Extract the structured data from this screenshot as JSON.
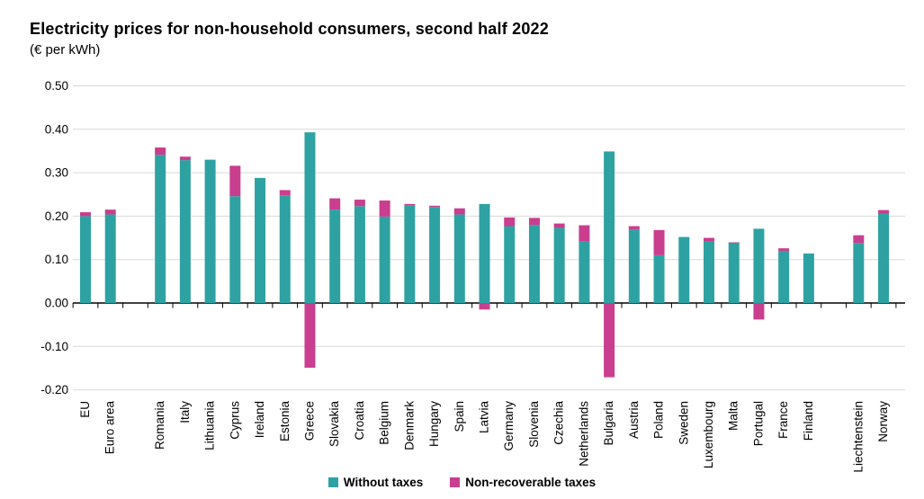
{
  "title": "Electricity prices for non-household consumers, second half 2022",
  "subtitle": "(€ per kWh)",
  "legend": [
    {
      "label": "Without taxes",
      "color": "#2EA2A2"
    },
    {
      "label": "Non-recoverable taxes",
      "color": "#C93E8F"
    }
  ],
  "colors": {
    "gridline": "#d9d9d9",
    "axis": "#000000",
    "text": "#000000"
  },
  "chart_data": {
    "type": "bar",
    "stacked": true,
    "title": "Electricity prices for non-household consumers, second half 2022",
    "ylabel": "€ per kWh",
    "ylim": [
      -0.2,
      0.5
    ],
    "yticks": [
      0.5,
      0.4,
      0.3,
      0.2,
      0.1,
      0.0,
      -0.1,
      -0.2
    ],
    "grid": true,
    "legend_position": "bottom",
    "categories": [
      "EU",
      "Euro area",
      "Romania",
      "Italy",
      "Lithuania",
      "Cyprus",
      "Ireland",
      "Estonia",
      "Greece",
      "Slovakia",
      "Croatia",
      "Belgium",
      "Denmark",
      "Hungary",
      "Spain",
      "Latvia",
      "Germany",
      "Slovenia",
      "Czechia",
      "Netherlands",
      "Bulgaria",
      "Austria",
      "Poland",
      "Sweden",
      "Luxembourg",
      "Malta",
      "Portugal",
      "France",
      "Finland",
      "Liechtenstein",
      "Norway"
    ],
    "series": [
      {
        "name": "Without taxes",
        "color": "#2EA2A2",
        "values": [
          0.2,
          0.204,
          0.341,
          0.329,
          0.33,
          0.246,
          0.288,
          0.248,
          0.393,
          0.215,
          0.223,
          0.199,
          0.225,
          0.221,
          0.204,
          0.228,
          0.177,
          0.18,
          0.173,
          0.142,
          0.349,
          0.169,
          0.11,
          0.152,
          0.142,
          0.139,
          0.171,
          0.12,
          0.114,
          0.138,
          0.206
        ]
      },
      {
        "name": "Non-recoverable taxes",
        "color": "#C93E8F",
        "values": [
          0.009,
          0.011,
          0.017,
          0.008,
          0.0,
          0.07,
          0.0,
          0.012,
          -0.149,
          0.026,
          0.015,
          0.037,
          0.003,
          0.003,
          0.014,
          -0.015,
          0.02,
          0.016,
          0.01,
          0.037,
          -0.171,
          0.008,
          0.058,
          0.0,
          0.008,
          0.001,
          -0.038,
          0.006,
          0.0,
          0.018,
          0.008
        ]
      }
    ],
    "gaps_after_indices": [
      1,
      28
    ]
  }
}
